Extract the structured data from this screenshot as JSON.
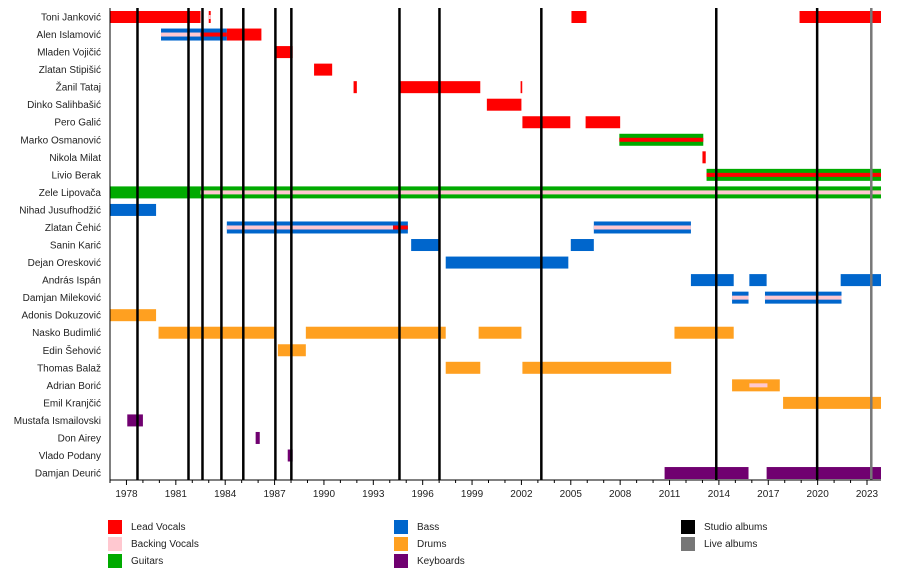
{
  "chart_data": {
    "type": "timeline",
    "xlim": [
      1977.0,
      2023.85
    ],
    "x_ticks": [
      1978,
      1981,
      1984,
      1987,
      1990,
      1993,
      1996,
      1999,
      2002,
      2005,
      2008,
      2011,
      2014,
      2017,
      2020,
      2023
    ],
    "colors": {
      "lead": "#ff0000",
      "backing": "#ffc8d0",
      "guitar": "#00aa00",
      "bass": "#0066cc",
      "drums": "#ffa020",
      "keyboards": "#700070",
      "studio": "#000000",
      "live": "#777777"
    },
    "legend": [
      {
        "key": "lead",
        "label": "Lead Vocals"
      },
      {
        "key": "backing",
        "label": "Backing Vocals"
      },
      {
        "key": "guitar",
        "label": "Guitars"
      },
      {
        "key": "bass",
        "label": "Bass"
      },
      {
        "key": "drums",
        "label": "Drums"
      },
      {
        "key": "keyboards",
        "label": "Keyboards"
      },
      {
        "key": "studio",
        "label": "Studio albums"
      },
      {
        "key": "live",
        "label": "Live albums"
      }
    ],
    "studio_albums": [
      1978.67,
      1981.77,
      1982.62,
      1983.77,
      1985.1,
      1987.05,
      1988.02,
      1994.59,
      1997.02,
      2003.21,
      2013.84,
      2019.97
    ],
    "live_albums": [
      2023.26
    ],
    "members": [
      {
        "name": "Toni Janković",
        "periods": [
          {
            "role": "lead",
            "start": 1977.0,
            "end": 1982.5
          },
          {
            "role": "lead",
            "start": 1983.0,
            "end": 1983.12
          },
          {
            "role": "lead",
            "start": 2005.04,
            "end": 2005.95
          },
          {
            "role": "lead",
            "start": 2018.9,
            "end": 2023.85
          }
        ],
        "stripes": [
          {
            "role": "backing",
            "start": 1983.0,
            "end": 1983.12
          }
        ]
      },
      {
        "name": "Alen Islamović",
        "periods": [
          {
            "role": "bass",
            "start": 1980.1,
            "end": 1984.1
          },
          {
            "role": "lead",
            "start": 1984.1,
            "end": 1986.2
          }
        ],
        "stripes": [
          {
            "role": "backing",
            "start": 1980.1,
            "end": 1982.5
          },
          {
            "role": "lead",
            "start": 1982.5,
            "end": 1984.1
          }
        ]
      },
      {
        "name": "Mladen Vojičić",
        "periods": [
          {
            "role": "lead",
            "start": 1987.1,
            "end": 1988.1
          }
        ],
        "stripes": []
      },
      {
        "name": "Zlatan Stipišić",
        "periods": [
          {
            "role": "lead",
            "start": 1989.4,
            "end": 1990.5
          }
        ],
        "stripes": []
      },
      {
        "name": "Žanil Tataj",
        "periods": [
          {
            "role": "lead",
            "start": 1991.8,
            "end": 1992.0
          },
          {
            "role": "lead",
            "start": 1994.6,
            "end": 1999.5
          },
          {
            "role": "lead",
            "start": 2001.95,
            "end": 2002.05
          }
        ],
        "stripes": []
      },
      {
        "name": "Dinko Salihbašić",
        "periods": [
          {
            "role": "lead",
            "start": 1999.9,
            "end": 2002.0
          }
        ],
        "stripes": []
      },
      {
        "name": "Pero Galić",
        "periods": [
          {
            "role": "lead",
            "start": 2002.06,
            "end": 2004.97
          },
          {
            "role": "lead",
            "start": 2005.9,
            "end": 2008.0
          }
        ],
        "stripes": []
      },
      {
        "name": "Marko Osmanović",
        "periods": [
          {
            "role": "guitar",
            "start": 2007.95,
            "end": 2013.05
          }
        ],
        "stripes": [
          {
            "role": "lead",
            "start": 2007.95,
            "end": 2013.05
          }
        ]
      },
      {
        "name": "Nikola Milat",
        "periods": [
          {
            "role": "lead",
            "start": 2013.0,
            "end": 2013.2
          }
        ],
        "stripes": []
      },
      {
        "name": "Livio Berak",
        "periods": [
          {
            "role": "guitar",
            "start": 2013.25,
            "end": 2023.85
          }
        ],
        "stripes": [
          {
            "role": "lead",
            "start": 2013.25,
            "end": 2023.85
          }
        ]
      },
      {
        "name": "Zele Lipovača",
        "periods": [
          {
            "role": "guitar",
            "start": 1977.0,
            "end": 2023.85
          }
        ],
        "stripes": [
          {
            "role": "backing",
            "start": 1982.5,
            "end": 2023.85
          }
        ]
      },
      {
        "name": "Nihad Jusufhodžić",
        "periods": [
          {
            "role": "bass",
            "start": 1977.0,
            "end": 1979.8
          }
        ],
        "stripes": []
      },
      {
        "name": "Zlatan Čehić",
        "periods": [
          {
            "role": "bass",
            "start": 1984.1,
            "end": 1995.1
          },
          {
            "role": "bass",
            "start": 2006.4,
            "end": 2012.3
          }
        ],
        "stripes": [
          {
            "role": "backing",
            "start": 1984.1,
            "end": 1994.2
          },
          {
            "role": "lead",
            "start": 1994.2,
            "end": 1995.1
          },
          {
            "role": "backing",
            "start": 2006.4,
            "end": 2012.3
          }
        ]
      },
      {
        "name": "Sanin Karić",
        "periods": [
          {
            "role": "bass",
            "start": 1995.3,
            "end": 1997.0
          },
          {
            "role": "bass",
            "start": 2005.0,
            "end": 2006.4
          }
        ],
        "stripes": []
      },
      {
        "name": "Dejan Oresković",
        "periods": [
          {
            "role": "bass",
            "start": 1997.4,
            "end": 2004.85
          }
        ],
        "stripes": []
      },
      {
        "name": "András Ispán",
        "periods": [
          {
            "role": "bass",
            "start": 2012.3,
            "end": 2014.9
          },
          {
            "role": "bass",
            "start": 2015.85,
            "end": 2016.9
          },
          {
            "role": "bass",
            "start": 2021.4,
            "end": 2023.85
          }
        ],
        "stripes": []
      },
      {
        "name": "Damjan Mileković",
        "periods": [
          {
            "role": "bass",
            "start": 2014.8,
            "end": 2015.8
          },
          {
            "role": "bass",
            "start": 2016.8,
            "end": 2021.45
          }
        ],
        "stripes": [
          {
            "role": "backing",
            "start": 2014.8,
            "end": 2015.8
          },
          {
            "role": "backing",
            "start": 2016.8,
            "end": 2021.45
          }
        ]
      },
      {
        "name": "Adonis Dokuzović",
        "periods": [
          {
            "role": "drums",
            "start": 1977.0,
            "end": 1979.8
          }
        ],
        "stripes": []
      },
      {
        "name": "Nasko Budimlić",
        "periods": [
          {
            "role": "drums",
            "start": 1979.95,
            "end": 1987.05
          },
          {
            "role": "drums",
            "start": 1988.9,
            "end": 1997.4
          },
          {
            "role": "drums",
            "start": 1999.4,
            "end": 2002.0
          },
          {
            "role": "drums",
            "start": 2011.3,
            "end": 2014.9
          }
        ],
        "stripes": []
      },
      {
        "name": "Edin Šehović",
        "periods": [
          {
            "role": "drums",
            "start": 1987.2,
            "end": 1988.9
          }
        ],
        "stripes": []
      },
      {
        "name": "Thomas Balaž",
        "periods": [
          {
            "role": "drums",
            "start": 1997.4,
            "end": 1999.5
          },
          {
            "role": "drums",
            "start": 2002.06,
            "end": 2011.1
          }
        ],
        "stripes": []
      },
      {
        "name": "Adrian Borić",
        "periods": [
          {
            "role": "drums",
            "start": 2014.8,
            "end": 2017.7
          }
        ],
        "stripes": [
          {
            "role": "backing",
            "start": 2015.85,
            "end": 2016.95
          }
        ]
      },
      {
        "name": "Emil Kranjčić",
        "periods": [
          {
            "role": "drums",
            "start": 2017.9,
            "end": 2023.85
          }
        ],
        "stripes": []
      },
      {
        "name": "Mustafa Ismailovski",
        "periods": [
          {
            "role": "keyboards",
            "start": 1978.05,
            "end": 1979.0
          }
        ],
        "stripes": []
      },
      {
        "name": "Don Airey",
        "periods": [
          {
            "role": "keyboards",
            "start": 1985.85,
            "end": 1986.1
          }
        ],
        "stripes": []
      },
      {
        "name": "Vlado Podany",
        "periods": [
          {
            "role": "keyboards",
            "start": 1987.8,
            "end": 1988.1
          }
        ],
        "stripes": []
      },
      {
        "name": "Damjan Deurić",
        "periods": [
          {
            "role": "keyboards",
            "start": 2010.7,
            "end": 2015.8
          },
          {
            "role": "keyboards",
            "start": 2016.9,
            "end": 2023.85
          }
        ],
        "stripes": []
      }
    ]
  }
}
